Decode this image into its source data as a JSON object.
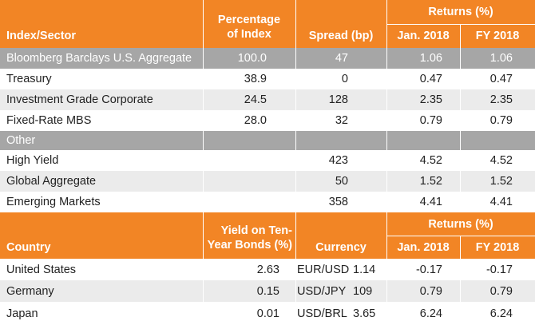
{
  "table1": {
    "header": {
      "index_sector": "Index/Sector",
      "pct_line1": "Percentage",
      "pct_line2": "of Index",
      "spread": "Spread (bp)",
      "returns": "Returns (%)",
      "jan": "Jan. 2018",
      "fy": "FY 2018"
    },
    "rows": [
      {
        "name": "Bloomberg Barclays U.S. Aggregate",
        "pct": "100.0",
        "spread": "47",
        "jan": "1.06",
        "fy": "1.06",
        "style": "gray"
      },
      {
        "name": "Treasury",
        "pct": "38.9",
        "spread": "0",
        "jan": "0.47",
        "fy": "0.47",
        "style": "white"
      },
      {
        "name": "Investment Grade Corporate",
        "pct": "24.5",
        "spread": "128",
        "jan": "2.35",
        "fy": "2.35",
        "style": "light"
      },
      {
        "name": "Fixed-Rate MBS",
        "pct": "28.0",
        "spread": "32",
        "jan": "0.79",
        "fy": "0.79",
        "style": "white"
      },
      {
        "name": "Other",
        "pct": "",
        "spread": "",
        "jan": "",
        "fy": "",
        "style": "gray"
      },
      {
        "name": "High Yield",
        "pct": "",
        "spread": "423",
        "jan": "4.52",
        "fy": "4.52",
        "style": "white"
      },
      {
        "name": "Global Aggregate",
        "pct": "",
        "spread": "50",
        "jan": "1.52",
        "fy": "1.52",
        "style": "light"
      },
      {
        "name": "Emerging Markets",
        "pct": "",
        "spread": "358",
        "jan": "4.41",
        "fy": "4.41",
        "style": "white"
      }
    ]
  },
  "table2": {
    "header": {
      "country": "Country",
      "yield_line1": "Yield on Ten-",
      "yield_line2": "Year Bonds (%)",
      "currency": "Currency",
      "returns": "Returns (%)",
      "jan": "Jan. 2018",
      "fy": "FY 2018"
    },
    "rows": [
      {
        "country": "United States",
        "yield": "2.63",
        "pair": "EUR/USD",
        "rate": "1.14",
        "jan": "-0.17",
        "fy": "-0.17",
        "style": "white"
      },
      {
        "country": "Germany",
        "yield": "0.15",
        "pair": "USD/JPY",
        "rate": "109",
        "jan": "0.79",
        "fy": "0.79",
        "style": "light"
      },
      {
        "country": "Japan",
        "yield": "0.01",
        "pair": "USD/BRL",
        "rate": "3.65",
        "jan": "6.24",
        "fy": "6.24",
        "style": "white"
      }
    ]
  }
}
